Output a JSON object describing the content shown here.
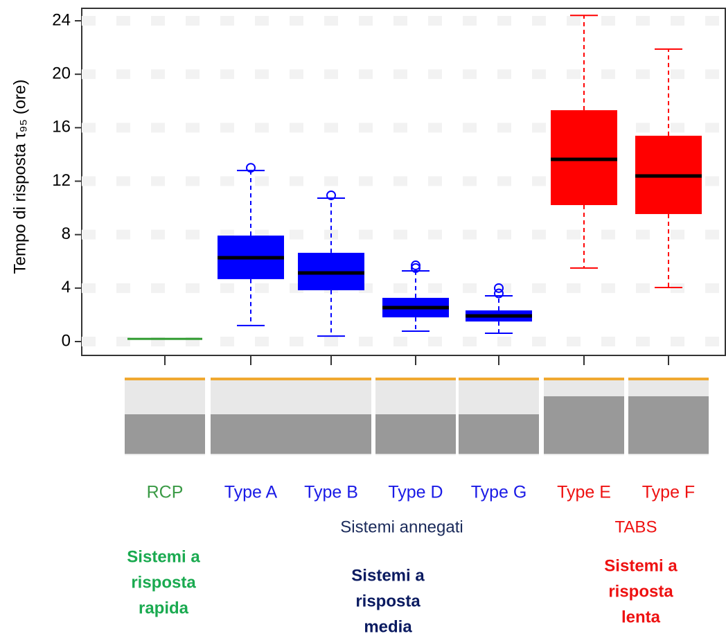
{
  "chart_data": {
    "type": "box",
    "ylabel": "Tempo di risposta τ₉₅ (ore)",
    "categories": [
      "RCP",
      "Type A",
      "Type B",
      "Type D",
      "Type G",
      "Type E",
      "Type F"
    ],
    "category_colors": [
      "#3a9a45",
      "#1a1ae6",
      "#1a1ae6",
      "#1a1ae6",
      "#1a1ae6",
      "#ee1111",
      "#ee1111"
    ],
    "boxes": [
      {
        "whisker_low": 0.2,
        "q1": 0.2,
        "median": 0.2,
        "q3": 0.2,
        "whisker_high": 0.2,
        "outliers": [],
        "color": "#2e9a2e"
      },
      {
        "whisker_low": 1.2,
        "q1": 4.67,
        "median": 6.27,
        "q3": 7.93,
        "whisker_high": 12.8,
        "outliers": [
          13.0
        ],
        "color": "#0000ff"
      },
      {
        "whisker_low": 0.41,
        "q1": 3.84,
        "median": 5.13,
        "q3": 6.64,
        "whisker_high": 10.73,
        "outliers": [
          10.94
        ],
        "color": "#0000ff"
      },
      {
        "whisker_low": 0.78,
        "q1": 1.81,
        "median": 2.54,
        "q3": 3.27,
        "whisker_high": 5.29,
        "outliers": [
          5.5,
          5.7
        ],
        "color": "#0000ff"
      },
      {
        "whisker_low": 0.62,
        "q1": 1.5,
        "median": 1.92,
        "q3": 2.33,
        "whisker_high": 3.42,
        "outliers": [
          3.6,
          4.0
        ],
        "color": "#0000ff"
      },
      {
        "whisker_low": 5.5,
        "q1": 10.21,
        "median": 13.63,
        "q3": 17.31,
        "whisker_high": 24.4,
        "outliers": [],
        "color": "#ff0000"
      },
      {
        "whisker_low": 4.04,
        "q1": 9.54,
        "median": 12.39,
        "q3": 15.4,
        "whisker_high": 21.88,
        "outliers": [],
        "color": "#ff0000"
      }
    ],
    "ylim": [
      0,
      24
    ],
    "yticks": [
      0,
      4,
      8,
      12,
      16,
      20,
      24
    ]
  },
  "annotations": {
    "embedded": "Sistemi annegati",
    "tabs": "TABS",
    "fast": [
      "Sistemi a",
      "risposta",
      "rapida"
    ],
    "medium": [
      "Sistemi a",
      "risposta",
      "media"
    ],
    "slow": [
      "Sistemi a",
      "risposta",
      "lenta"
    ]
  }
}
